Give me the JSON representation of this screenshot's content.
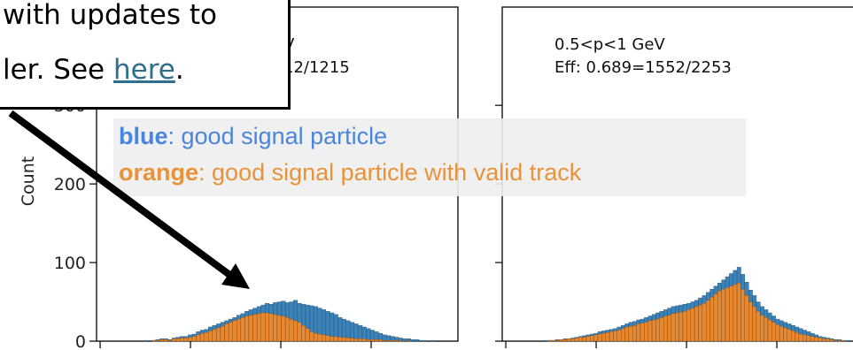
{
  "callout": {
    "line1": "with updates to",
    "line2_prefix": "ler. See ",
    "link_text": "here",
    "line2_suffix": "."
  },
  "legend": {
    "blue_key": "blue",
    "blue_text": ": good signal particle",
    "orange_key": "orange",
    "orange_text": ": good signal particle with valid track"
  },
  "colors": {
    "blue": "#3a82b8",
    "orange": "#e8882e",
    "legend_blue_text": "#4a86e0",
    "legend_orange_text": "#e8923a"
  },
  "chart_data": [
    {
      "type": "bar",
      "ylabel": "Count",
      "yticks": [
        0,
        100,
        200,
        300
      ],
      "ylim": [
        0,
        425
      ],
      "annotation_line1": "V",
      "annotation_line2": "12/1215",
      "series": [
        {
          "name": "good signal particle",
          "values": [
            0,
            0,
            0,
            0,
            0,
            0,
            0,
            0,
            0,
            1,
            0,
            1,
            2,
            3,
            3,
            2,
            4,
            5,
            6,
            6,
            8,
            9,
            12,
            14,
            15,
            18,
            20,
            22,
            24,
            26,
            28,
            30,
            33,
            35,
            38,
            40,
            42,
            44,
            46,
            48,
            47,
            49,
            50,
            51,
            49,
            50,
            52,
            48,
            47,
            46,
            45,
            44,
            42,
            40,
            38,
            36,
            34,
            30,
            28,
            26,
            24,
            22,
            20,
            18,
            16,
            14,
            12,
            10,
            8,
            7,
            6,
            5,
            4,
            3,
            3,
            2,
            2,
            1,
            1,
            0,
            1,
            0,
            0,
            0
          ]
        },
        {
          "name": "good signal particle with valid track",
          "values": [
            0,
            0,
            0,
            0,
            0,
            0,
            0,
            0,
            0,
            0,
            0,
            1,
            1,
            2,
            2,
            1,
            3,
            3,
            4,
            4,
            5,
            6,
            8,
            10,
            11,
            13,
            15,
            17,
            19,
            22,
            24,
            26,
            28,
            30,
            32,
            33,
            34,
            35,
            36,
            36,
            35,
            34,
            33,
            32,
            30,
            28,
            26,
            24,
            20,
            16,
            12,
            10,
            9,
            8,
            7,
            6,
            6,
            5,
            5,
            4,
            4,
            3,
            3,
            3,
            2,
            2,
            2,
            2,
            1,
            1,
            1,
            1,
            1,
            0,
            1,
            0,
            0,
            0,
            0,
            0,
            0,
            0,
            0,
            0
          ]
        }
      ]
    },
    {
      "type": "bar",
      "annotation_line1": "0.5<p<1 GeV",
      "annotation_line2": "Eff: 0.689=1552/2253",
      "ylim": [
        0,
        425
      ],
      "series": [
        {
          "name": "good signal particle",
          "values": [
            0,
            0,
            0,
            0,
            0,
            0,
            0,
            0,
            1,
            1,
            1,
            2,
            2,
            3,
            3,
            4,
            5,
            6,
            7,
            8,
            9,
            10,
            12,
            13,
            14,
            15,
            16,
            18,
            20,
            22,
            24,
            25,
            27,
            28,
            30,
            32,
            34,
            36,
            38,
            40,
            42,
            44,
            45,
            46,
            47,
            48,
            50,
            52,
            55,
            58,
            62,
            66,
            70,
            74,
            78,
            82,
            86,
            90,
            94,
            85,
            75,
            65,
            58,
            50,
            44,
            40,
            36,
            32,
            28,
            26,
            24,
            22,
            20,
            18,
            16,
            14,
            12,
            10,
            8,
            6,
            5,
            4,
            3,
            2,
            2,
            1,
            1,
            0
          ]
        },
        {
          "name": "good signal particle with valid track",
          "values": [
            0,
            0,
            0,
            0,
            0,
            0,
            0,
            0,
            0,
            1,
            1,
            1,
            2,
            2,
            3,
            3,
            4,
            5,
            5,
            6,
            7,
            8,
            9,
            10,
            11,
            12,
            13,
            14,
            16,
            18,
            19,
            20,
            22,
            23,
            24,
            26,
            27,
            28,
            30,
            32,
            33,
            35,
            36,
            37,
            38,
            40,
            42,
            44,
            46,
            48,
            52,
            56,
            60,
            64,
            66,
            68,
            70,
            72,
            74,
            66,
            58,
            50,
            44,
            38,
            33,
            30,
            27,
            24,
            21,
            19,
            17,
            15,
            13,
            11,
            9,
            8,
            7,
            6,
            5,
            4,
            3,
            3,
            2,
            1,
            1,
            1,
            0,
            0
          ]
        }
      ]
    }
  ]
}
